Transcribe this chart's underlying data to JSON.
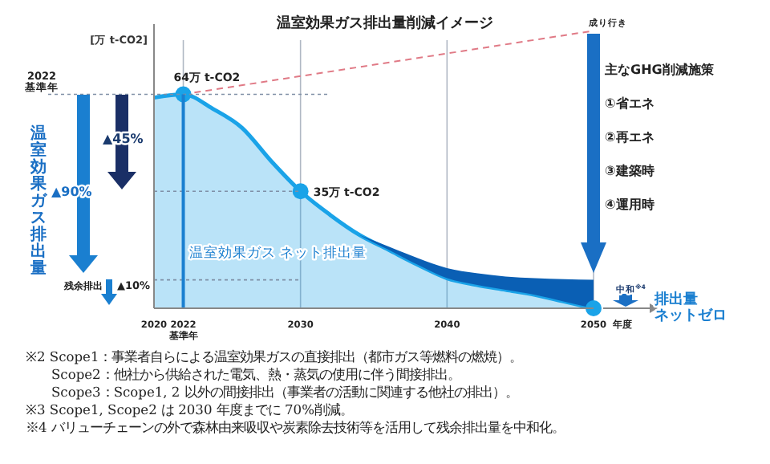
{
  "chart_data": {
    "type": "area",
    "title": "温室効果ガス排出量削減イメージ",
    "ylabel": "[万 t-CO2]",
    "xlabel": "年度",
    "xlim": [
      2020,
      2050
    ],
    "ylim": [
      0,
      85
    ],
    "xticks": [
      2020,
      {
        "value": 2022,
        "label": "2022\n基準年"
      },
      2030,
      2040,
      2050
    ],
    "grid": "x",
    "tick_labels": "x",
    "series": [
      {
        "color": "#1aa3e8",
        "x": [
          2020,
          2022,
          2024,
          2026,
          2028,
          2030,
          2032,
          2034,
          2036,
          2038,
          2040,
          2042,
          2044,
          2046,
          2048,
          2050
        ],
        "values": [
          63,
          64,
          59.7,
          54,
          44,
          35,
          28,
          22,
          17.5,
          13,
          9,
          7,
          5.5,
          4,
          2,
          0
        ]
      },
      {
        "color": "#0a5fb4",
        "x": [
          2034,
          2036,
          2038,
          2040,
          2042,
          2044,
          2046,
          2048,
          2050
        ],
        "values": [
          22,
          18.5,
          15,
          12,
          10.5,
          9.5,
          9,
          8.7,
          8.5
        ]
      },
      {
        "type": "line",
        "color": "#e07a86",
        "line_style": "dashed",
        "x": [
          2022,
          2050
        ],
        "values": [
          64,
          83
        ]
      },
      {
        "type": "scatter",
        "color": "#1aa3e8",
        "marker": "circle",
        "x": [
          2022,
          2030,
          2050
        ],
        "values": [
          64,
          35,
          0
        ],
        "value_labels": [
          "64万 t-CO2",
          "35万 t-CO2",
          null
        ]
      }
    ],
    "ref_lines": [
      {
        "axis": "y",
        "value": 64,
        "label": "2022\n基準年",
        "color": "#7f8fa6",
        "line_style": "dotted"
      },
      {
        "axis": "y",
        "value": 35,
        "color": "#7f8fa6",
        "line_style": "dotted"
      },
      {
        "axis": "y",
        "value": 8.5,
        "color": "#7f8fa6",
        "line_style": "dotted"
      },
      {
        "axis": "x",
        "value": 2022,
        "color": "#1a7fd0",
        "line_style": "solid"
      }
    ],
    "annotations": [
      "温室効果ガス排出量",
      "▲90%",
      "▲45%",
      "残余排出",
      "▲10%",
      "温室効果ガス ネット排出量",
      "成り行き",
      "主なGHG削減施策",
      "①省エネ",
      "②再エネ",
      "③建築時",
      "④運用時",
      "中和$^{※4}$",
      "排出量",
      "ネットゼロ",
      "※2 Scope1：事業者自らによる温室効果ガスの直接排出（都市ガス等燃料の燃焼）。",
      "　　Scope2：他社から供給された電気、熱・蒸気の使用に伴う間接排出。",
      "　　Scope3：Scope1, 2 以外の間接排出（事業者の活動に関連する他社の排出）。",
      "※3 Scope1, Scope2 は 2030 年度までに 70%削減。",
      "※4 バリューチェーンの外で森林由来吸収や炭素除去技術等を活用して残余排出量を中和化。"
    ]
  }
}
